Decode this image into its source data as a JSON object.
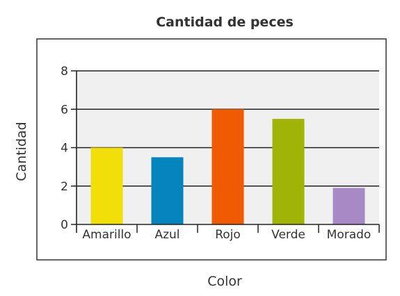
{
  "chart_data": {
    "type": "bar",
    "title": "Cantidad de peces",
    "xlabel": "Color",
    "ylabel": "Cantidad",
    "categories": [
      "Amarillo",
      "Azul",
      "Rojo",
      "Verde",
      "Morado"
    ],
    "values": [
      4,
      3.5,
      6,
      5.5,
      1.9
    ],
    "colors": [
      "#f2df0a",
      "#0584bd",
      "#f05a02",
      "#a0b407",
      "#a889c6"
    ],
    "ylim": [
      0,
      8
    ],
    "yticks": [
      "0",
      "2",
      "4",
      "6",
      "8"
    ],
    "grid": true,
    "legend": "none",
    "plot_background": "#f0f0f0"
  }
}
